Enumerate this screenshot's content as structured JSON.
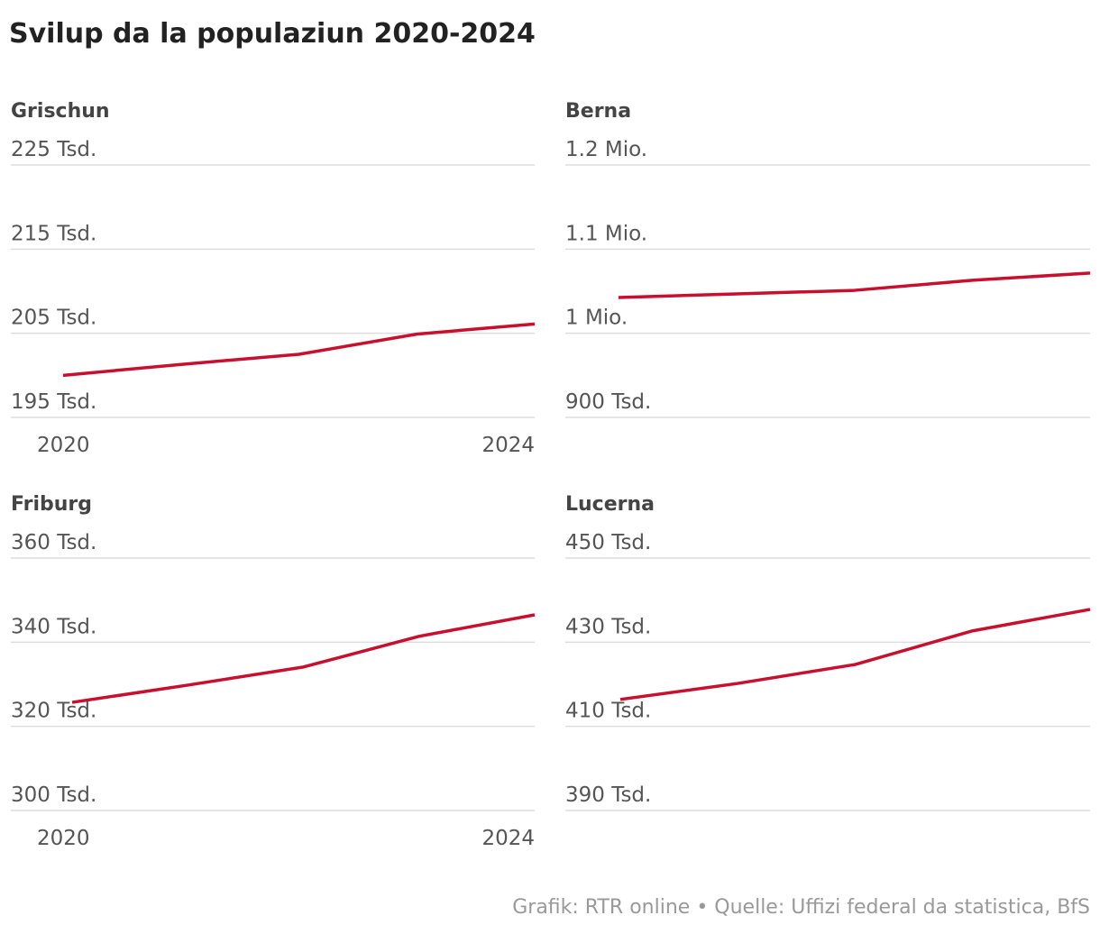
{
  "title": "Svilup da la populaziun 2020-2024",
  "footer": "Grafik: RTR online • Quelle: Uffizi federal da statistica, BfS",
  "line_color": "#c8102e",
  "chart_data": [
    {
      "type": "line",
      "title": "Grischun",
      "x": [
        2020,
        2021,
        2022,
        2023,
        2024
      ],
      "values": [
        200.0,
        201.3,
        202.5,
        204.9,
        206.1
      ],
      "unit": "Tsd.",
      "ylim": [
        195,
        225
      ],
      "yticks": [
        {
          "v": 225,
          "label": "225 Tsd."
        },
        {
          "v": 215,
          "label": "215 Tsd."
        },
        {
          "v": 205,
          "label": "205 Tsd."
        },
        {
          "v": 195,
          "label": "195 Tsd."
        }
      ],
      "xticks": [
        "2020",
        "2024"
      ],
      "grid": true
    },
    {
      "type": "line",
      "title": "Berna",
      "x": [
        2020,
        2021,
        2022,
        2023,
        2024
      ],
      "values": [
        1042.5,
        1046.8,
        1051,
        1063,
        1071.5
      ],
      "unit": "Tsd.",
      "ylim": [
        900,
        1200
      ],
      "yticks": [
        {
          "v": 1200,
          "label": "1.2 Mio."
        },
        {
          "v": 1100,
          "label": "1.1 Mio."
        },
        {
          "v": 1000,
          "label": "1 Mio."
        },
        {
          "v": 900,
          "label": "900 Tsd."
        }
      ],
      "xticks": [],
      "grid": true
    },
    {
      "type": "line",
      "title": "Friburg",
      "x": [
        2020,
        2021,
        2022,
        2023,
        2024
      ],
      "values": [
        325.7,
        329.8,
        334.1,
        341.4,
        346.5
      ],
      "unit": "Tsd.",
      "ylim": [
        300,
        360
      ],
      "yticks": [
        {
          "v": 360,
          "label": "360 Tsd."
        },
        {
          "v": 340,
          "label": "340 Tsd."
        },
        {
          "v": 320,
          "label": "320 Tsd."
        },
        {
          "v": 300,
          "label": "300 Tsd."
        }
      ],
      "xticks": [
        "2020",
        "2024"
      ],
      "grid": true
    },
    {
      "type": "line",
      "title": "Lucerna",
      "x": [
        2020,
        2021,
        2022,
        2023,
        2024
      ],
      "values": [
        416.4,
        420.2,
        424.7,
        432.7,
        437.8
      ],
      "unit": "Tsd.",
      "ylim": [
        390,
        450
      ],
      "yticks": [
        {
          "v": 450,
          "label": "450 Tsd."
        },
        {
          "v": 430,
          "label": "430 Tsd."
        },
        {
          "v": 410,
          "label": "410 Tsd."
        },
        {
          "v": 390,
          "label": "390 Tsd."
        }
      ],
      "xticks": [],
      "grid": true
    }
  ]
}
